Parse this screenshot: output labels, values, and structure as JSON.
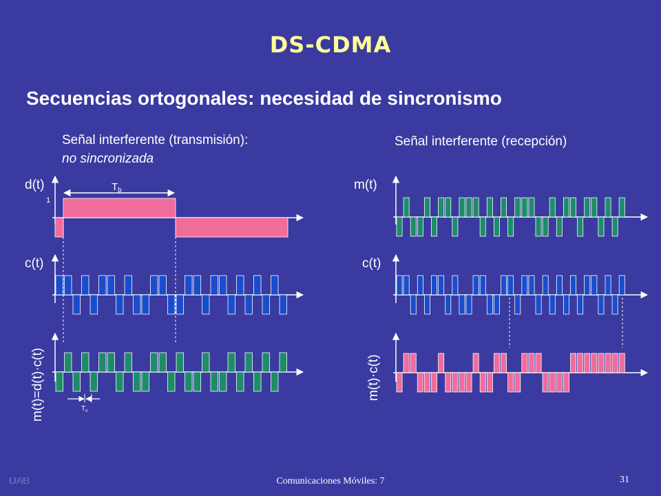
{
  "slide": {
    "title": "DS-CDMA",
    "subtitle": "Secuencias ortogonales: necesidad de sincronismo",
    "left_caption_line1": "Señal interferente (transmisión):",
    "left_caption_line2": "no sincronizada",
    "right_caption": "Señal interferente (recepción)",
    "footer": "Comunicaciones Móviles: 7",
    "page_number": "31",
    "logo_text": "UAB"
  },
  "diagram": {
    "labels": {
      "d": "d(t)",
      "c_left": "c(t)",
      "m_left": "m(t)=d(t)·c(t)",
      "m_right": "m(t)",
      "c_right": "c(t)",
      "mc_right": "m(t)·c(t)",
      "Tb": "T",
      "Tb_sub": "b",
      "Tc": "T",
      "Tc_sub": "c",
      "one": "1"
    },
    "colors": {
      "data": "#f06c9b",
      "code": "#1a4dcc",
      "product": "#1e8c6a",
      "axis": "#ffffff"
    },
    "data_bits": [
      -1,
      1,
      -1
    ],
    "code_chips": [
      1,
      1,
      -1,
      1,
      -1,
      1,
      1,
      -1,
      1,
      -1,
      -1,
      1,
      1,
      -1,
      -1,
      1,
      1,
      -1,
      1,
      1,
      -1,
      1,
      -1,
      1,
      -1,
      1,
      -1
    ],
    "received_chips": [
      -1,
      1,
      -1,
      -1,
      1,
      -1,
      1,
      1,
      -1,
      1,
      1,
      1,
      -1,
      1,
      -1,
      1,
      -1,
      1,
      1,
      1,
      -1,
      -1,
      1,
      -1,
      1,
      1,
      -1,
      1,
      1,
      -1,
      1,
      -1,
      1
    ],
    "right_code_chips": [
      1,
      1,
      -1,
      1,
      -1,
      1,
      1,
      -1,
      1,
      -1,
      -1,
      1,
      1,
      -1,
      -1,
      1,
      1,
      -1,
      1,
      1,
      -1,
      1,
      -1,
      1,
      -1,
      1,
      -1,
      1,
      1,
      -1,
      1,
      -1,
      1
    ]
  }
}
